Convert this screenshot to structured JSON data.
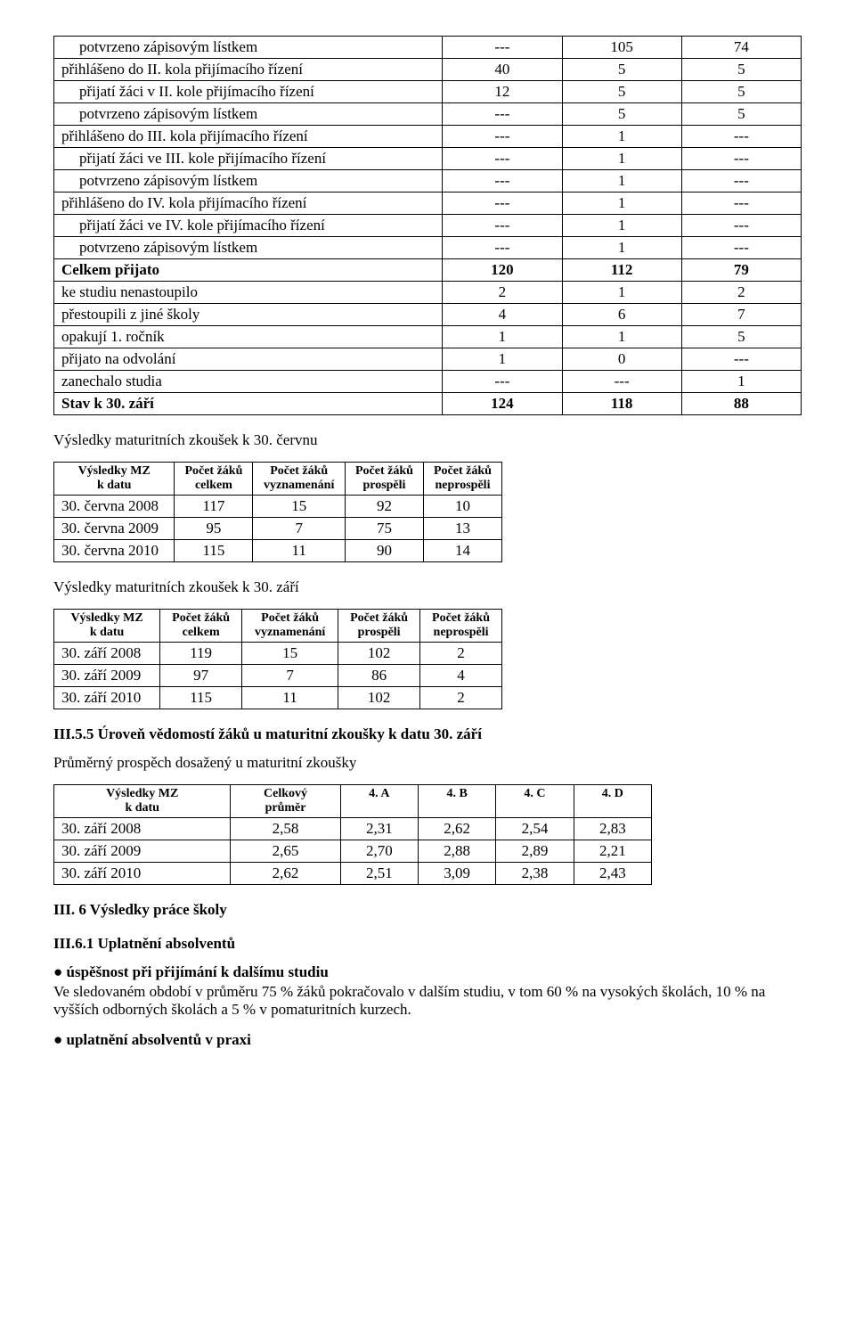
{
  "table1": {
    "rows": [
      {
        "label": "potvrzeno zápisovým lístkem",
        "c1": "---",
        "c2": "105",
        "c3": "74",
        "indent": true,
        "bold": false
      },
      {
        "label": "přihlášeno do II. kola přijímacího řízení",
        "c1": "40",
        "c2": "5",
        "c3": "5",
        "indent": false,
        "bold": false
      },
      {
        "label": "přijatí žáci v II. kole přijímacího řízení",
        "c1": "12",
        "c2": "5",
        "c3": "5",
        "indent": true,
        "bold": false
      },
      {
        "label": "potvrzeno zápisovým lístkem",
        "c1": "---",
        "c2": "5",
        "c3": "5",
        "indent": true,
        "bold": false
      },
      {
        "label": "přihlášeno do III. kola přijímacího řízení",
        "c1": "---",
        "c2": "1",
        "c3": "---",
        "indent": false,
        "bold": false
      },
      {
        "label": "přijatí žáci ve III. kole přijímacího řízení",
        "c1": "---",
        "c2": "1",
        "c3": "---",
        "indent": true,
        "bold": false
      },
      {
        "label": "potvrzeno zápisovým lístkem",
        "c1": "---",
        "c2": "1",
        "c3": "---",
        "indent": true,
        "bold": false
      },
      {
        "label": "přihlášeno do IV. kola přijímacího řízení",
        "c1": "---",
        "c2": "1",
        "c3": "---",
        "indent": false,
        "bold": false
      },
      {
        "label": "přijatí žáci ve IV. kole přijímacího řízení",
        "c1": "---",
        "c2": "1",
        "c3": "---",
        "indent": true,
        "bold": false
      },
      {
        "label": "potvrzeno zápisovým lístkem",
        "c1": "---",
        "c2": "1",
        "c3": "---",
        "indent": true,
        "bold": false
      },
      {
        "label": "Celkem přijato",
        "c1": "120",
        "c2": "112",
        "c3": "79",
        "indent": false,
        "bold": true
      },
      {
        "label": "ke studiu nenastoupilo",
        "c1": "2",
        "c2": "1",
        "c3": "2",
        "indent": false,
        "bold": false
      },
      {
        "label": "přestoupili z jiné školy",
        "c1": "4",
        "c2": "6",
        "c3": "7",
        "indent": false,
        "bold": false
      },
      {
        "label": "opakují 1. ročník",
        "c1": "1",
        "c2": "1",
        "c3": "5",
        "indent": false,
        "bold": false
      },
      {
        "label": "přijato na odvolání",
        "c1": "1",
        "c2": "0",
        "c3": "---",
        "indent": false,
        "bold": false
      },
      {
        "label": "zanechalo studia",
        "c1": "---",
        "c2": "---",
        "c3": "1",
        "indent": false,
        "bold": false
      },
      {
        "label": "Stav k 30. září",
        "c1": "124",
        "c2": "118",
        "c3": "88",
        "indent": false,
        "bold": true
      }
    ],
    "col_widths": [
      "52%",
      "16%",
      "16%",
      "16%"
    ]
  },
  "cervnu": {
    "title": "Výsledky maturitních zkoušek k 30. červnu",
    "headers": [
      "Výsledky MZ\nk datu",
      "Počet žáků\ncelkem",
      "Počet žáků\nvyznamenání",
      "Počet žáků\nprospěli",
      "Počet žáků\nneprospěli"
    ],
    "rows": [
      {
        "d": "30. června 2008",
        "a": "117",
        "b": "15",
        "c": "92",
        "e": "10"
      },
      {
        "d": "30. června 2009",
        "a": "95",
        "b": "7",
        "c": "75",
        "e": "13"
      },
      {
        "d": "30. června 2010",
        "a": "115",
        "b": "11",
        "c": "90",
        "e": "14"
      }
    ]
  },
  "zari": {
    "title": "Výsledky maturitních zkoušek k 30. září",
    "headers": [
      "Výsledky MZ\nk datu",
      "Počet žáků\ncelkem",
      "Počet žáků\nvyznamenání",
      "Počet žáků\nprospěli",
      "Počet žáků\nneprospěli"
    ],
    "rows": [
      {
        "d": "30. září 2008",
        "a": "119",
        "b": "15",
        "c": "102",
        "e": "2"
      },
      {
        "d": "30. září 2009",
        "a": "97",
        "b": "7",
        "c": "86",
        "e": "4"
      },
      {
        "d": "30. září 2010",
        "a": "115",
        "b": "11",
        "c": "102",
        "e": "2"
      }
    ]
  },
  "sec355": {
    "heading": "III.5.5 Úroveň vědomostí žáků u maturitní zkoušky k datu 30. září",
    "intro": "Průměrný prospěch dosažený u maturitní zkoušky",
    "headers": [
      "Výsledky MZ\nk datu",
      "Celkový\nprůměr",
      "4. A",
      "4. B",
      "4. C",
      "4. D"
    ],
    "rows": [
      {
        "d": "30. září 2008",
        "p": "2,58",
        "a": "2,31",
        "b": "2,62",
        "c": "2,54",
        "e": "2,83"
      },
      {
        "d": "30. září 2009",
        "p": "2,65",
        "a": "2,70",
        "b": "2,88",
        "c": "2,89",
        "e": "2,21"
      },
      {
        "d": "30. září 2010",
        "p": "2,62",
        "a": "2,51",
        "b": "3,09",
        "c": "2,38",
        "e": "2,43"
      }
    ]
  },
  "sec6": {
    "heading": "III. 6   Výsledky práce školy",
    "sub": "III.6.1 Uplatnění absolventů",
    "bullet1_title": "● úspěšnost při přijímání k dalšímu studiu",
    "bullet1_text": "Ve sledovaném období v průměru 75 % žáků pokračovalo v dalším studiu, v tom 60 % na vysokých školách, 10 % na vyšších odborných školách a 5 % v pomaturitních kurzech.",
    "bullet2_title": "● uplatnění absolventů v praxi"
  }
}
